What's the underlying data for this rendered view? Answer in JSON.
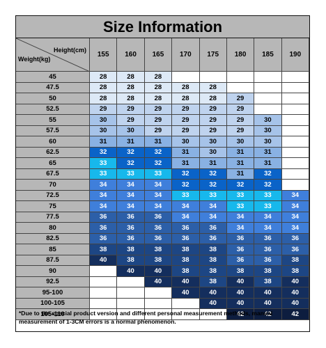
{
  "title": "Size Information",
  "corner": {
    "height_label": "Height(cm)",
    "weight_label": "Weight(kg)"
  },
  "footnote": "*Due to the special product version and different personal measurement methods, manual measurement of 1-3CM errors is a normal phenomenon.",
  "chart_data": {
    "type": "table",
    "title": "Size Information",
    "xlabel": "Height(cm)",
    "ylabel": "Weight(kg)",
    "heights": [
      "155",
      "160",
      "165",
      "170",
      "175",
      "180",
      "185",
      "190"
    ],
    "weights": [
      "45",
      "47.5",
      "50",
      "52.5",
      "55",
      "57.5",
      "60",
      "62.5",
      "65",
      "67.5",
      "70",
      "72.5",
      "75",
      "77.5",
      "80",
      "82.5",
      "85",
      "87.5",
      "90",
      "92.5",
      "95-100",
      "100-105",
      "105-110"
    ],
    "rows": [
      [
        "28",
        "28",
        "28",
        "",
        "",
        "",
        "",
        ""
      ],
      [
        "28",
        "28",
        "28",
        "28",
        "28",
        "",
        "",
        ""
      ],
      [
        "28",
        "28",
        "28",
        "28",
        "28",
        "29",
        "",
        ""
      ],
      [
        "29",
        "29",
        "29",
        "29",
        "29",
        "29",
        "",
        ""
      ],
      [
        "30",
        "29",
        "29",
        "29",
        "29",
        "29",
        "30",
        ""
      ],
      [
        "30",
        "30",
        "29",
        "29",
        "29",
        "29",
        "30",
        ""
      ],
      [
        "31",
        "31",
        "31",
        "30",
        "30",
        "30",
        "30",
        ""
      ],
      [
        "32",
        "32",
        "32",
        "31",
        "30",
        "31",
        "31",
        ""
      ],
      [
        "33",
        "32",
        "32",
        "31",
        "31",
        "31",
        "31",
        ""
      ],
      [
        "33",
        "33",
        "33",
        "32",
        "32",
        "31",
        "32",
        ""
      ],
      [
        "34",
        "34",
        "34",
        "32",
        "32",
        "32",
        "32",
        ""
      ],
      [
        "34",
        "34",
        "34",
        "33",
        "33",
        "33",
        "33",
        "34"
      ],
      [
        "34",
        "34",
        "34",
        "34",
        "34",
        "33",
        "33",
        "34"
      ],
      [
        "36",
        "36",
        "36",
        "34",
        "34",
        "34",
        "34",
        "34"
      ],
      [
        "36",
        "36",
        "36",
        "36",
        "36",
        "34",
        "34",
        "34"
      ],
      [
        "36",
        "36",
        "36",
        "36",
        "36",
        "36",
        "36",
        "36"
      ],
      [
        "38",
        "38",
        "38",
        "38",
        "38",
        "36",
        "36",
        "36"
      ],
      [
        "40",
        "38",
        "38",
        "38",
        "38",
        "36",
        "36",
        "38"
      ],
      [
        "",
        "40",
        "40",
        "38",
        "38",
        "38",
        "38",
        "38"
      ],
      [
        "",
        "",
        "40",
        "40",
        "38",
        "40",
        "38",
        "40"
      ],
      [
        "",
        "",
        "",
        "40",
        "40",
        "40",
        "40",
        "40"
      ],
      [
        "",
        "",
        "",
        "",
        "40",
        "40",
        "40",
        "40"
      ],
      [
        "",
        "",
        "",
        "",
        "",
        "42",
        "42",
        "42"
      ]
    ]
  },
  "colors": {
    "header_gray": "#b7b7b7",
    "28": "#dde9f6",
    "29": "#bfd3ee",
    "30": "#a6c3e9",
    "31": "#89b1e3",
    "32": "#0a63c8",
    "33": "#17b8ec",
    "34": "#3f7fdb",
    "36": "#2c5fa8",
    "38": "#1d4684",
    "40": "#142e5d",
    "42": "#0d1d3f"
  }
}
